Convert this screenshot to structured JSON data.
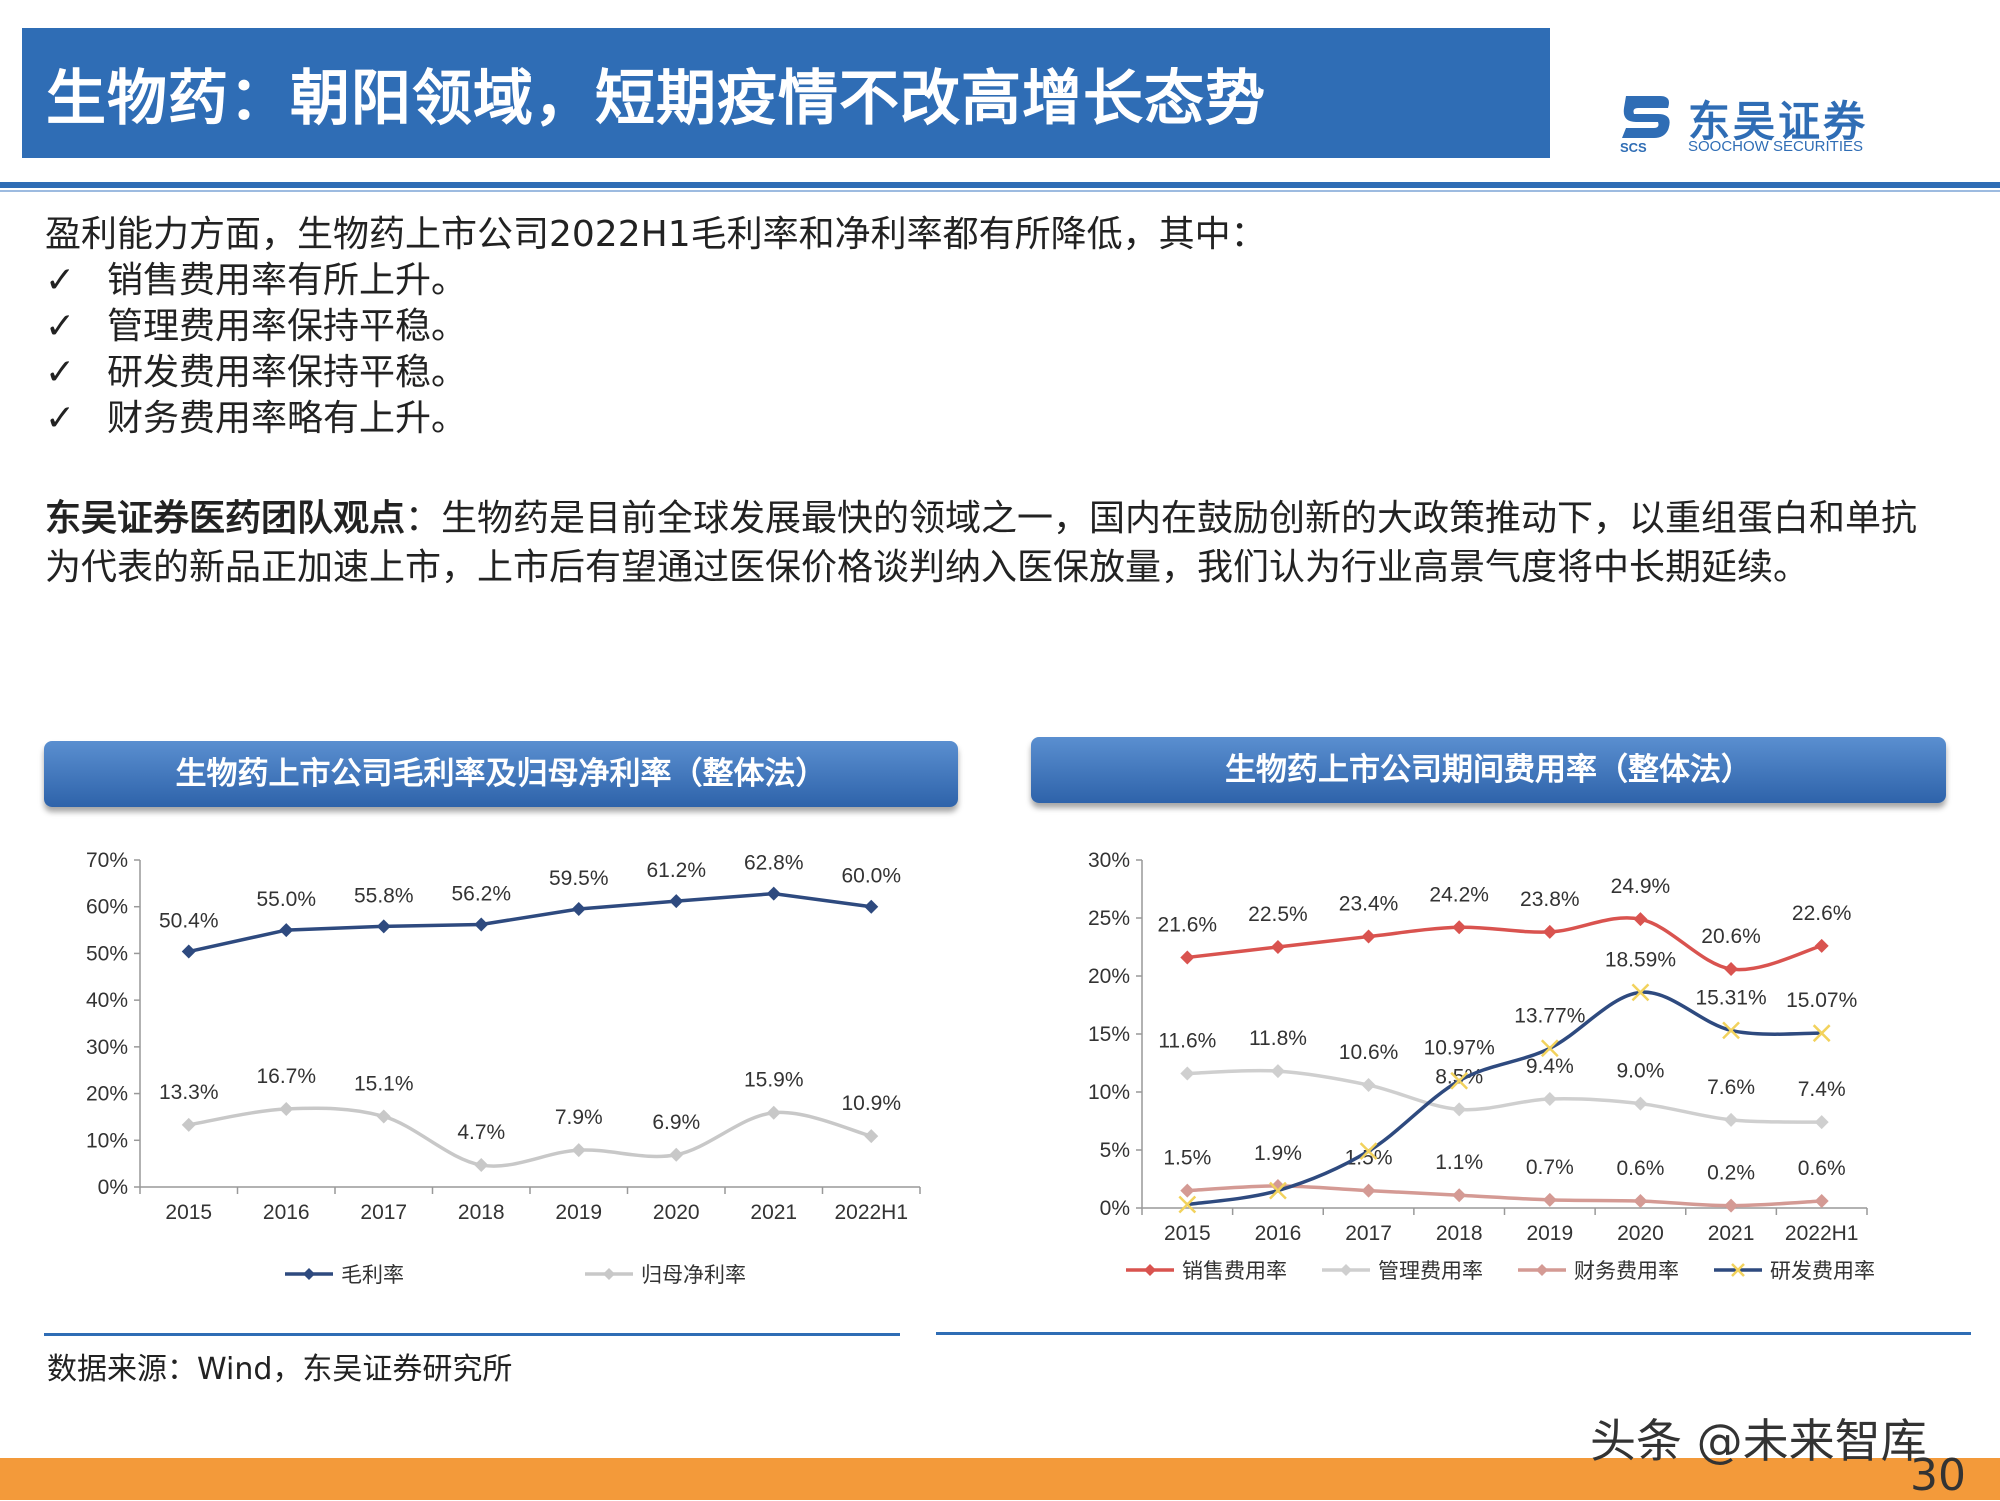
{
  "header": {
    "title": "生物药：朝阳领域，短期疫情不改高增长态势",
    "logo_cn": "东吴证券",
    "logo_en": "SOOCHOW SECURITIES",
    "logo_abbr": "SCS",
    "brand_color": "#2f6db5"
  },
  "body": {
    "intro": "盈利能力方面，生物药上市公司2022H1毛利率和净利率都有所降低，其中：",
    "check_symbol": "✓",
    "bullets": [
      "销售费用率有所上升。",
      "管理费用率保持平稳。",
      "研发费用率保持平稳。",
      "财务费用率略有上升。"
    ],
    "view_label": "东吴证券医药团队观点",
    "view_text": "：生物药是目前全球发展最快的领域之一，国内在鼓励创新的大政策推动下，以重组蛋白和单抗为代表的新品正加速上市，上市后有望通过医保价格谈判纳入医保放量，我们认为行业高景气度将中长期延续。"
  },
  "panels": {
    "left_title": "生物药上市公司毛利率及归母净利率（整体法）",
    "right_title": "生物药上市公司期间费用率（整体法）"
  },
  "chart_data": [
    {
      "type": "line",
      "categories": [
        "2015",
        "2016",
        "2017",
        "2018",
        "2019",
        "2020",
        "2021",
        "2022H1"
      ],
      "ylim": [
        0,
        70
      ],
      "yticks": [
        "0%",
        "10%",
        "20%",
        "30%",
        "40%",
        "50%",
        "60%",
        "70%"
      ],
      "grid": false,
      "legend_position": "bottom",
      "series": [
        {
          "name": "毛利率",
          "color": "#2e4a7f",
          "marker": "diamond",
          "smooth": false,
          "values": [
            50.4,
            55.0,
            55.8,
            56.2,
            59.5,
            61.2,
            62.8,
            60.0
          ],
          "labels": [
            "50.4%",
            "55.0%",
            "55.8%",
            "56.2%",
            "59.5%",
            "61.2%",
            "62.8%",
            "60.0%"
          ]
        },
        {
          "name": "归母净利率",
          "color": "#c8c8c8",
          "marker": "diamond",
          "smooth": true,
          "values": [
            13.3,
            16.7,
            15.1,
            4.7,
            7.9,
            6.9,
            15.9,
            10.9
          ],
          "labels": [
            "13.3%",
            "16.7%",
            "15.1%",
            "4.7%",
            "7.9%",
            "6.9%",
            "15.9%",
            "10.9%"
          ]
        }
      ]
    },
    {
      "type": "line",
      "categories": [
        "2015",
        "2016",
        "2017",
        "2018",
        "2019",
        "2020",
        "2021",
        "2022H1"
      ],
      "ylim": [
        0,
        30
      ],
      "yticks": [
        "0%",
        "5%",
        "10%",
        "15%",
        "20%",
        "25%",
        "30%"
      ],
      "grid": false,
      "legend_position": "bottom",
      "series": [
        {
          "name": "销售费用率",
          "color": "#d9534f",
          "marker": "diamond",
          "smooth": true,
          "values": [
            21.6,
            22.5,
            23.4,
            24.2,
            23.8,
            24.9,
            20.6,
            22.6
          ],
          "labels": [
            "21.6%",
            "22.5%",
            "23.4%",
            "24.2%",
            "23.8%",
            "24.9%",
            "20.6%",
            "22.6%"
          ]
        },
        {
          "name": "管理费用率",
          "color": "#cfcfcf",
          "marker": "diamond",
          "smooth": true,
          "values": [
            11.6,
            11.8,
            10.6,
            8.5,
            9.4,
            9.0,
            7.6,
            7.4
          ],
          "labels": [
            "11.6%",
            "11.8%",
            "10.6%",
            "8.5%",
            "9.4%",
            "9.0%",
            "7.6%",
            "7.4%"
          ]
        },
        {
          "name": "财务费用率",
          "color": "#d49a94",
          "marker": "diamond",
          "smooth": true,
          "values": [
            1.5,
            1.9,
            1.5,
            1.1,
            0.7,
            0.6,
            0.2,
            0.6
          ],
          "labels": [
            "1.5%",
            "1.9%",
            "1.5%",
            "1.1%",
            "0.7%",
            "0.6%",
            "0.2%",
            "0.6%"
          ]
        },
        {
          "name": "研发费用率",
          "color": "#2e4a7f",
          "marker": "x",
          "smooth": true,
          "values": [
            0.3,
            1.5,
            4.9,
            10.97,
            13.77,
            18.59,
            15.31,
            15.07
          ],
          "labels": [
            "",
            "",
            "",
            "10.97%",
            "13.77%",
            "18.59%",
            "15.31%",
            "15.07%"
          ]
        }
      ]
    }
  ],
  "footer": {
    "source": "数据来源：Wind，东吴证券研究所",
    "watermark": "头条 @未来智库",
    "page_number": "30",
    "bar_color": "#f39a3a"
  }
}
